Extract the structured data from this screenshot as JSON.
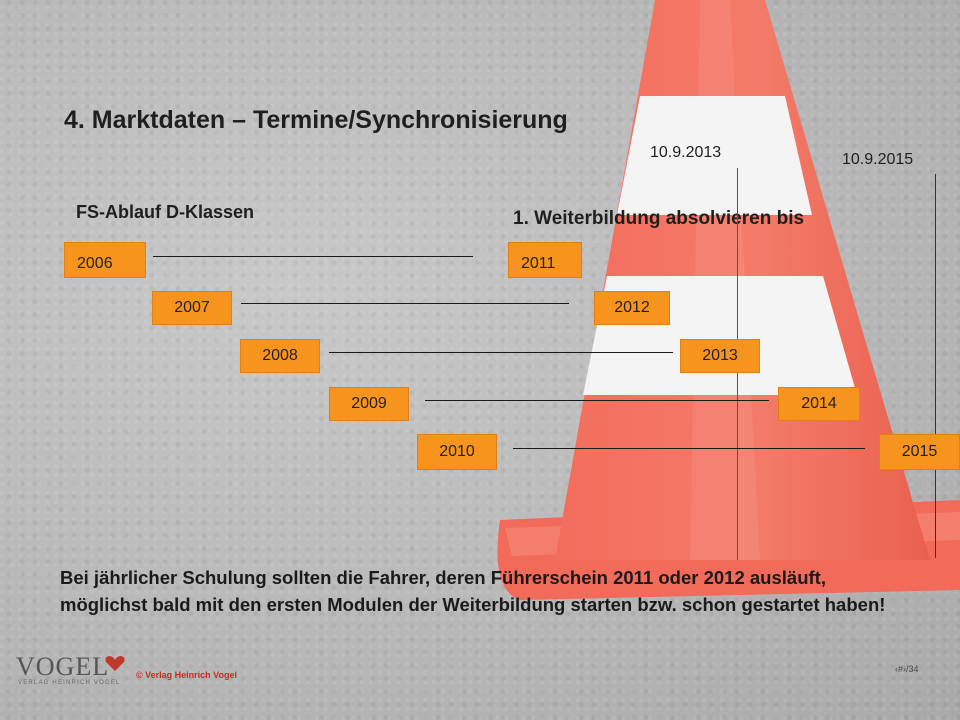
{
  "title": "4. Marktdaten – Termine/Synchronisierung",
  "subtitle": "FS-Ablauf D-Klassen",
  "deadline_caption": "1. Weiterbildung absolvieren bis",
  "dates": {
    "first": "10.9.2013",
    "second": "10.9.2015"
  },
  "pairs": [
    {
      "from": "2006",
      "to": "2011"
    },
    {
      "from": "2007",
      "to": "2012"
    },
    {
      "from": "2008",
      "to": "2013"
    },
    {
      "from": "2009",
      "to": "2014"
    },
    {
      "from": "2010",
      "to": "2015"
    }
  ],
  "note": "Bei jährlicher Schulung sollten die Fahrer, deren Führerschein 2011 oder 2012 ausläuft, möglichst bald mit den ersten Modulen der Weiterbildung starten bzw. schon gestartet haben!",
  "footer": {
    "logo": "VOGEL",
    "logo_sub": "VERLAG HEINRICH VOGEL",
    "copyright": "© Verlag Heinrich Vogel",
    "page": "‹#›/34"
  },
  "colors": {
    "box": "#f7941d",
    "red_line": "#d22020",
    "cone": "#f06a5a"
  }
}
